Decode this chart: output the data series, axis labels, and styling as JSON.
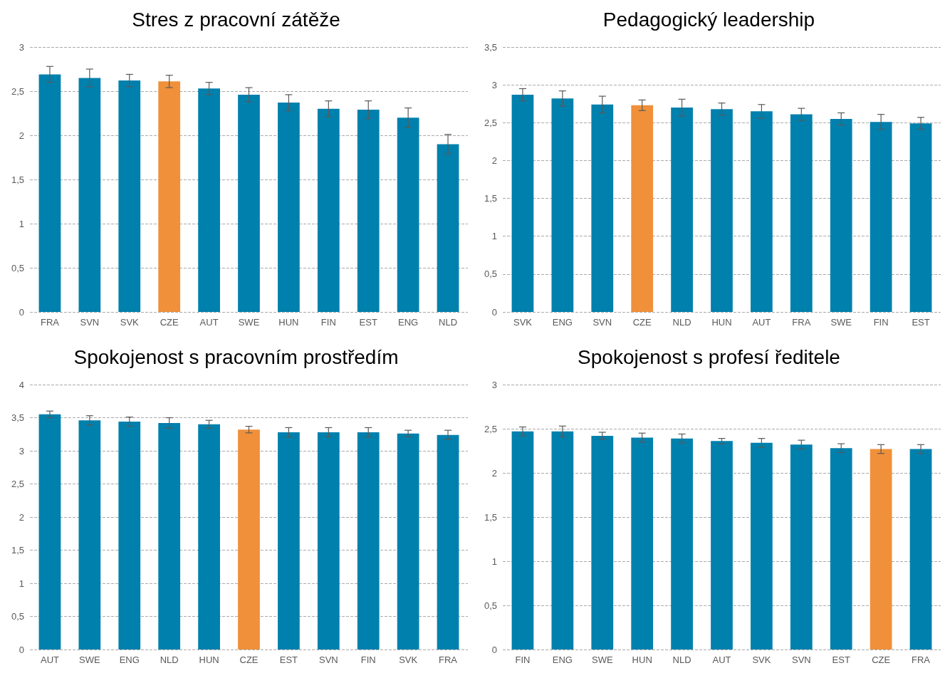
{
  "chart_data": [
    {
      "type": "bar",
      "title": "Stres z pracovní zátěže",
      "categories": [
        "FRA",
        "SVN",
        "SVK",
        "CZE",
        "AUT",
        "SWE",
        "HUN",
        "FIN",
        "EST",
        "ENG",
        "NLD"
      ],
      "values": [
        2.69,
        2.65,
        2.62,
        2.61,
        2.53,
        2.46,
        2.37,
        2.3,
        2.29,
        2.2,
        1.9
      ],
      "errors": [
        0.09,
        0.1,
        0.07,
        0.07,
        0.07,
        0.08,
        0.09,
        0.09,
        0.1,
        0.11,
        0.11
      ],
      "colors": [
        "#0080ad",
        "#0080ad",
        "#0080ad",
        "#f0903a",
        "#0080ad",
        "#0080ad",
        "#0080ad",
        "#0080ad",
        "#0080ad",
        "#0080ad",
        "#0080ad"
      ],
      "ylim": [
        0,
        3
      ],
      "yticks": [
        0,
        {
          "value": 0.5,
          "label": "0,5"
        },
        1,
        {
          "value": 1.5,
          "label": "1,5"
        },
        2,
        {
          "value": 2.5,
          "label": "2,5"
        },
        3
      ],
      "grid": "y"
    },
    {
      "type": "bar",
      "title": "Pedagogický leadership",
      "categories": [
        "SVK",
        "ENG",
        "SVN",
        "CZE",
        "NLD",
        "HUN",
        "AUT",
        "FRA",
        "SWE",
        "FIN",
        "EST"
      ],
      "values": [
        2.87,
        2.82,
        2.74,
        2.73,
        2.7,
        2.68,
        2.65,
        2.61,
        2.55,
        2.51,
        2.49
      ],
      "errors": [
        0.08,
        0.1,
        0.11,
        0.07,
        0.11,
        0.08,
        0.09,
        0.08,
        0.08,
        0.1,
        0.08
      ],
      "colors": [
        "#0080ad",
        "#0080ad",
        "#0080ad",
        "#f0903a",
        "#0080ad",
        "#0080ad",
        "#0080ad",
        "#0080ad",
        "#0080ad",
        "#0080ad",
        "#0080ad"
      ],
      "ylim": [
        0,
        3.5
      ],
      "yticks": [
        0,
        {
          "value": 0.5,
          "label": "0,5"
        },
        1,
        {
          "value": 1.5,
          "label": "1,5"
        },
        2,
        {
          "value": 2.5,
          "label": "2,5"
        },
        3,
        {
          "value": 3.5,
          "label": "3,5"
        }
      ],
      "grid": "y"
    },
    {
      "type": "bar",
      "title": "Spokojenost s pracovním prostředím",
      "categories": [
        "AUT",
        "SWE",
        "ENG",
        "NLD",
        "HUN",
        "CZE",
        "EST",
        "SVN",
        "FIN",
        "SVK",
        "FRA"
      ],
      "values": [
        3.55,
        3.46,
        3.44,
        3.42,
        3.4,
        3.32,
        3.28,
        3.28,
        3.28,
        3.26,
        3.24
      ],
      "errors": [
        0.05,
        0.07,
        0.07,
        0.08,
        0.06,
        0.05,
        0.07,
        0.07,
        0.07,
        0.05,
        0.07
      ],
      "colors": [
        "#0080ad",
        "#0080ad",
        "#0080ad",
        "#0080ad",
        "#0080ad",
        "#f0903a",
        "#0080ad",
        "#0080ad",
        "#0080ad",
        "#0080ad",
        "#0080ad"
      ],
      "ylim": [
        0,
        4
      ],
      "yticks": [
        0,
        {
          "value": 0.5,
          "label": "0,5"
        },
        1,
        {
          "value": 1.5,
          "label": "1,5"
        },
        2,
        {
          "value": 2.5,
          "label": "2,5"
        },
        3,
        {
          "value": 3.5,
          "label": "3,5"
        },
        4
      ],
      "grid": "y"
    },
    {
      "type": "bar",
      "title": "Spokojenost s profesí ředitele",
      "categories": [
        "FIN",
        "ENG",
        "SWE",
        "HUN",
        "NLD",
        "AUT",
        "SVK",
        "SVN",
        "EST",
        "CZE",
        "FRA"
      ],
      "values": [
        2.47,
        2.47,
        2.42,
        2.4,
        2.39,
        2.36,
        2.34,
        2.32,
        2.28,
        2.27,
        2.27
      ],
      "errors": [
        0.05,
        0.06,
        0.04,
        0.05,
        0.05,
        0.03,
        0.05,
        0.05,
        0.05,
        0.05,
        0.05
      ],
      "colors": [
        "#0080ad",
        "#0080ad",
        "#0080ad",
        "#0080ad",
        "#0080ad",
        "#0080ad",
        "#0080ad",
        "#0080ad",
        "#0080ad",
        "#f0903a",
        "#0080ad"
      ],
      "ylim": [
        0,
        3
      ],
      "yticks": [
        0,
        {
          "value": 0.5,
          "label": "0,5"
        },
        1,
        {
          "value": 1.5,
          "label": "1,5"
        },
        2,
        {
          "value": 2.5,
          "label": "2,5"
        },
        3
      ],
      "grid": "y"
    }
  ]
}
